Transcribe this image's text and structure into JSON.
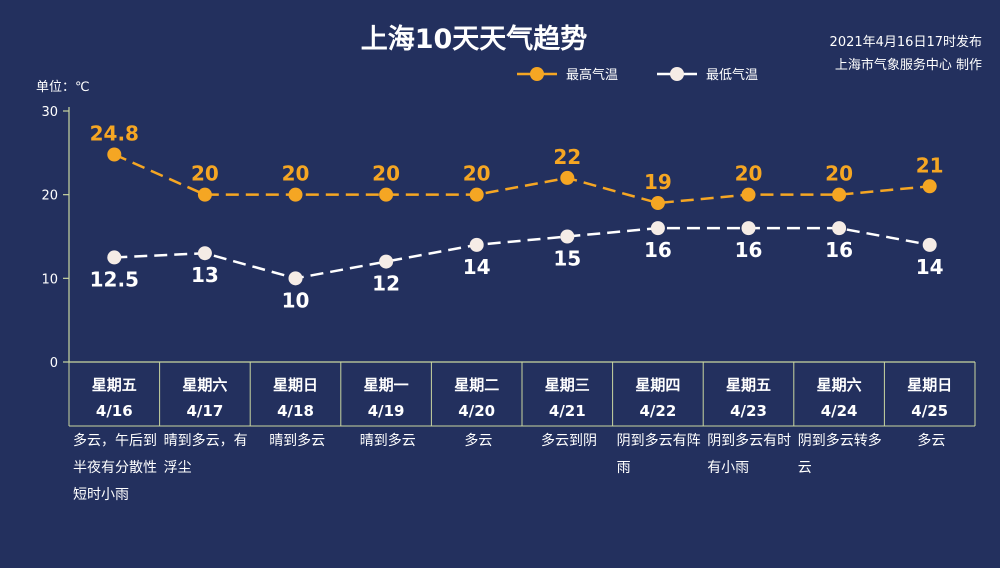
{
  "header": {
    "title": "上海10天天气趋势",
    "publish_line1": "2021年4月16日17时发布",
    "publish_line2": "上海市气象服务中心 制作"
  },
  "colors": {
    "background": "#23305e",
    "high": "#f5a623",
    "low": "#ffffff",
    "axis": "#c9d6a0"
  },
  "chart_data": {
    "type": "line",
    "unit_label": "单位：℃",
    "ylim": [
      0,
      30
    ],
    "yticks": [
      0,
      10,
      20,
      30
    ],
    "grid": false,
    "legend_position": "top-right",
    "x": [
      {
        "weekday": "星期五",
        "date": "4/16",
        "weather": "多云，午后到半夜有分散性短时小雨"
      },
      {
        "weekday": "星期六",
        "date": "4/17",
        "weather": "晴到多云，有浮尘"
      },
      {
        "weekday": "星期日",
        "date": "4/18",
        "weather": "晴到多云"
      },
      {
        "weekday": "星期一",
        "date": "4/19",
        "weather": "晴到多云"
      },
      {
        "weekday": "星期二",
        "date": "4/20",
        "weather": "多云"
      },
      {
        "weekday": "星期三",
        "date": "4/21",
        "weather": "多云到阴"
      },
      {
        "weekday": "星期四",
        "date": "4/22",
        "weather": "阴到多云有阵雨"
      },
      {
        "weekday": "星期五",
        "date": "4/23",
        "weather": "阴到多云有时有小雨"
      },
      {
        "weekday": "星期六",
        "date": "4/24",
        "weather": "阴到多云转多云"
      },
      {
        "weekday": "星期日",
        "date": "4/25",
        "weather": "多云"
      }
    ],
    "series": [
      {
        "name": "最高气温",
        "values": [
          "24.8",
          "20",
          "20",
          "20",
          "20",
          "22",
          "19",
          "20",
          "20",
          "21"
        ]
      },
      {
        "name": "最低气温",
        "values": [
          "12.5",
          "13",
          "10",
          "12",
          "14",
          "15",
          "16",
          "16",
          "16",
          "14"
        ]
      }
    ]
  }
}
